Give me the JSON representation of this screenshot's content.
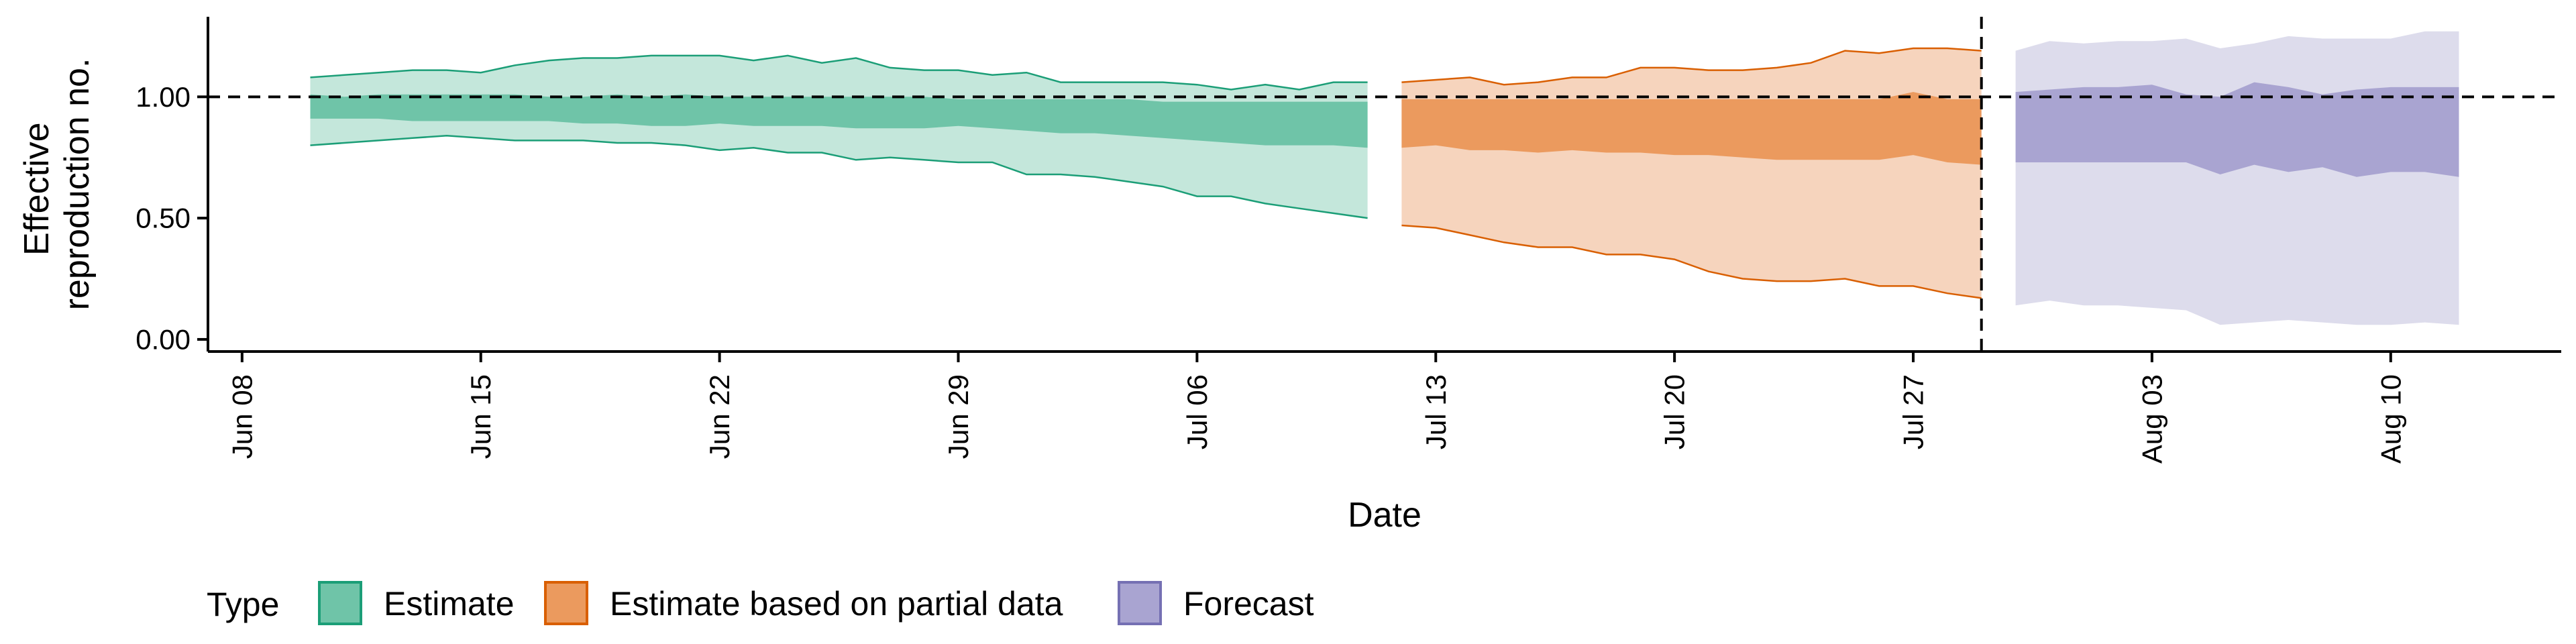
{
  "chart_data": {
    "type": "area",
    "xlabel": "Date",
    "ylabel_lines": [
      "Effective",
      "reproduction no."
    ],
    "x_range": [
      "2020-06-07",
      "2020-08-15"
    ],
    "ylim": [
      -0.05,
      1.33
    ],
    "x_ticks": [
      {
        "date": "2020-06-08",
        "label": "Jun 08"
      },
      {
        "date": "2020-06-15",
        "label": "Jun 15"
      },
      {
        "date": "2020-06-22",
        "label": "Jun 22"
      },
      {
        "date": "2020-06-29",
        "label": "Jun 29"
      },
      {
        "date": "2020-07-06",
        "label": "Jul 06"
      },
      {
        "date": "2020-07-13",
        "label": "Jul 13"
      },
      {
        "date": "2020-07-20",
        "label": "Jul 20"
      },
      {
        "date": "2020-07-27",
        "label": "Jul 27"
      },
      {
        "date": "2020-08-03",
        "label": "Aug 03"
      },
      {
        "date": "2020-08-10",
        "label": "Aug 10"
      }
    ],
    "y_ticks": [
      {
        "value": 0.0,
        "label": "0.00"
      },
      {
        "value": 0.5,
        "label": "0.50"
      },
      {
        "value": 1.0,
        "label": "1.00"
      }
    ],
    "reference_lines": [
      {
        "axis": "y",
        "value": 1.0,
        "style": "dashed"
      },
      {
        "axis": "x",
        "value": "2020-07-29",
        "style": "dashed"
      }
    ],
    "grid": false,
    "legend": {
      "title": "Type",
      "position": "bottom-left",
      "entries": [
        {
          "label": "Estimate",
          "fill": "#6fc4a8",
          "stroke": "#1b9e77"
        },
        {
          "label": "Estimate based on partial data",
          "fill": "#eb9a5e",
          "stroke": "#d95f02"
        },
        {
          "label": "Forecast",
          "fill": "#a9a4d1",
          "stroke": "#7570b3"
        }
      ]
    },
    "series": [
      {
        "name": "Estimate",
        "outer_fill": "#c4e7db",
        "inner_fill": "#6fc4a8",
        "outer_stroke": "#1b9e77",
        "x": [
          "2020-06-10",
          "2020-06-11",
          "2020-06-12",
          "2020-06-13",
          "2020-06-14",
          "2020-06-15",
          "2020-06-16",
          "2020-06-17",
          "2020-06-18",
          "2020-06-19",
          "2020-06-20",
          "2020-06-21",
          "2020-06-22",
          "2020-06-23",
          "2020-06-24",
          "2020-06-25",
          "2020-06-26",
          "2020-06-27",
          "2020-06-28",
          "2020-06-29",
          "2020-06-30",
          "2020-07-01",
          "2020-07-02",
          "2020-07-03",
          "2020-07-04",
          "2020-07-05",
          "2020-07-06",
          "2020-07-07",
          "2020-07-08",
          "2020-07-09",
          "2020-07-10",
          "2020-07-11"
        ],
        "upper90": [
          1.08,
          1.09,
          1.1,
          1.11,
          1.11,
          1.1,
          1.13,
          1.15,
          1.16,
          1.16,
          1.17,
          1.17,
          1.17,
          1.15,
          1.17,
          1.14,
          1.16,
          1.12,
          1.11,
          1.11,
          1.09,
          1.1,
          1.06,
          1.06,
          1.06,
          1.06,
          1.05,
          1.03,
          1.05,
          1.03,
          1.06,
          1.06
        ],
        "upper50": [
          1.01,
          1.0,
          1.01,
          1.01,
          1.01,
          1.01,
          1.01,
          1.0,
          1.0,
          1.01,
          1.0,
          1.01,
          1.0,
          1.0,
          1.0,
          1.0,
          1.0,
          1.0,
          1.0,
          0.99,
          0.99,
          0.99,
          0.99,
          0.99,
          0.99,
          0.98,
          0.98,
          0.98,
          0.98,
          0.98,
          0.98,
          0.98
        ],
        "lower50": [
          0.91,
          0.91,
          0.91,
          0.9,
          0.9,
          0.9,
          0.9,
          0.9,
          0.89,
          0.89,
          0.88,
          0.88,
          0.89,
          0.88,
          0.88,
          0.88,
          0.87,
          0.87,
          0.87,
          0.88,
          0.87,
          0.86,
          0.85,
          0.85,
          0.84,
          0.83,
          0.82,
          0.81,
          0.8,
          0.8,
          0.8,
          0.79
        ],
        "lower90": [
          0.8,
          0.81,
          0.82,
          0.83,
          0.84,
          0.83,
          0.82,
          0.82,
          0.82,
          0.81,
          0.81,
          0.8,
          0.78,
          0.79,
          0.77,
          0.77,
          0.74,
          0.75,
          0.74,
          0.73,
          0.73,
          0.68,
          0.68,
          0.67,
          0.65,
          0.63,
          0.59,
          0.59,
          0.56,
          0.54,
          0.52,
          0.5
        ]
      },
      {
        "name": "Estimate based on partial data",
        "outer_fill": "#f6d4bd",
        "inner_fill": "#eb9a5e",
        "outer_stroke": "#d95f02",
        "x": [
          "2020-07-12",
          "2020-07-13",
          "2020-07-14",
          "2020-07-15",
          "2020-07-16",
          "2020-07-17",
          "2020-07-18",
          "2020-07-19",
          "2020-07-20",
          "2020-07-21",
          "2020-07-22",
          "2020-07-23",
          "2020-07-24",
          "2020-07-25",
          "2020-07-26",
          "2020-07-27",
          "2020-07-28",
          "2020-07-29"
        ],
        "upper90": [
          1.06,
          1.07,
          1.08,
          1.05,
          1.06,
          1.08,
          1.08,
          1.12,
          1.12,
          1.11,
          1.11,
          1.12,
          1.14,
          1.19,
          1.18,
          1.2,
          1.2,
          1.19
        ],
        "upper50": [
          0.99,
          0.99,
          0.99,
          0.99,
          0.99,
          0.99,
          0.99,
          0.99,
          0.99,
          0.99,
          0.99,
          0.99,
          0.99,
          0.99,
          0.99,
          1.02,
          0.99,
          0.99
        ],
        "lower50": [
          0.79,
          0.8,
          0.78,
          0.78,
          0.77,
          0.78,
          0.77,
          0.77,
          0.76,
          0.76,
          0.75,
          0.74,
          0.74,
          0.74,
          0.74,
          0.76,
          0.73,
          0.72
        ],
        "lower90": [
          0.47,
          0.46,
          0.43,
          0.4,
          0.38,
          0.38,
          0.35,
          0.35,
          0.33,
          0.28,
          0.25,
          0.24,
          0.24,
          0.25,
          0.22,
          0.22,
          0.19,
          0.17
        ]
      },
      {
        "name": "Forecast",
        "outer_fill": "#dddcec",
        "inner_fill": "#a9a4d1",
        "outer_stroke": "none",
        "x": [
          "2020-07-30",
          "2020-07-31",
          "2020-08-01",
          "2020-08-02",
          "2020-08-03",
          "2020-08-04",
          "2020-08-05",
          "2020-08-06",
          "2020-08-07",
          "2020-08-08",
          "2020-08-09",
          "2020-08-10",
          "2020-08-11",
          "2020-08-12"
        ],
        "upper90": [
          1.19,
          1.23,
          1.22,
          1.23,
          1.23,
          1.24,
          1.2,
          1.22,
          1.25,
          1.24,
          1.24,
          1.24,
          1.27,
          1.27
        ],
        "upper50": [
          1.02,
          1.03,
          1.04,
          1.04,
          1.05,
          1.01,
          1.0,
          1.06,
          1.04,
          1.01,
          1.03,
          1.04,
          1.04,
          1.04
        ],
        "lower50": [
          0.73,
          0.73,
          0.73,
          0.73,
          0.73,
          0.73,
          0.68,
          0.72,
          0.69,
          0.71,
          0.67,
          0.69,
          0.69,
          0.67
        ],
        "lower90": [
          0.14,
          0.16,
          0.14,
          0.14,
          0.13,
          0.12,
          0.06,
          0.07,
          0.08,
          0.07,
          0.06,
          0.06,
          0.07,
          0.06
        ]
      }
    ]
  }
}
